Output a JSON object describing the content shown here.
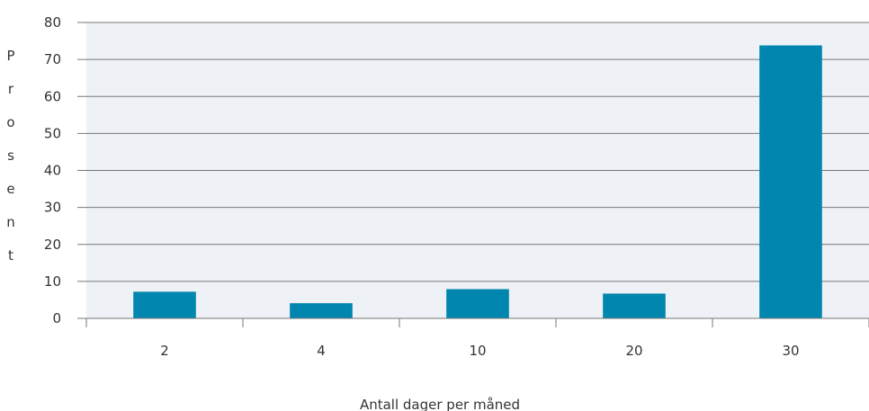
{
  "chart_data": {
    "type": "bar",
    "categories": [
      "2",
      "4",
      "10",
      "20",
      "30"
    ],
    "values": [
      7.2,
      4.1,
      7.9,
      6.7,
      73.8
    ],
    "xlabel": "Antall dager per måned",
    "ylabel": "Prosent",
    "ylim": [
      0,
      80
    ],
    "yticks": [
      "0",
      "10",
      "20",
      "30",
      "40",
      "50",
      "60",
      "70",
      "80"
    ],
    "grid": true,
    "legend": "none"
  },
  "colors": {
    "bar": "#0086AF",
    "plot_background": "#EEF1F6",
    "grid": "#777777",
    "axis": "#777777"
  }
}
